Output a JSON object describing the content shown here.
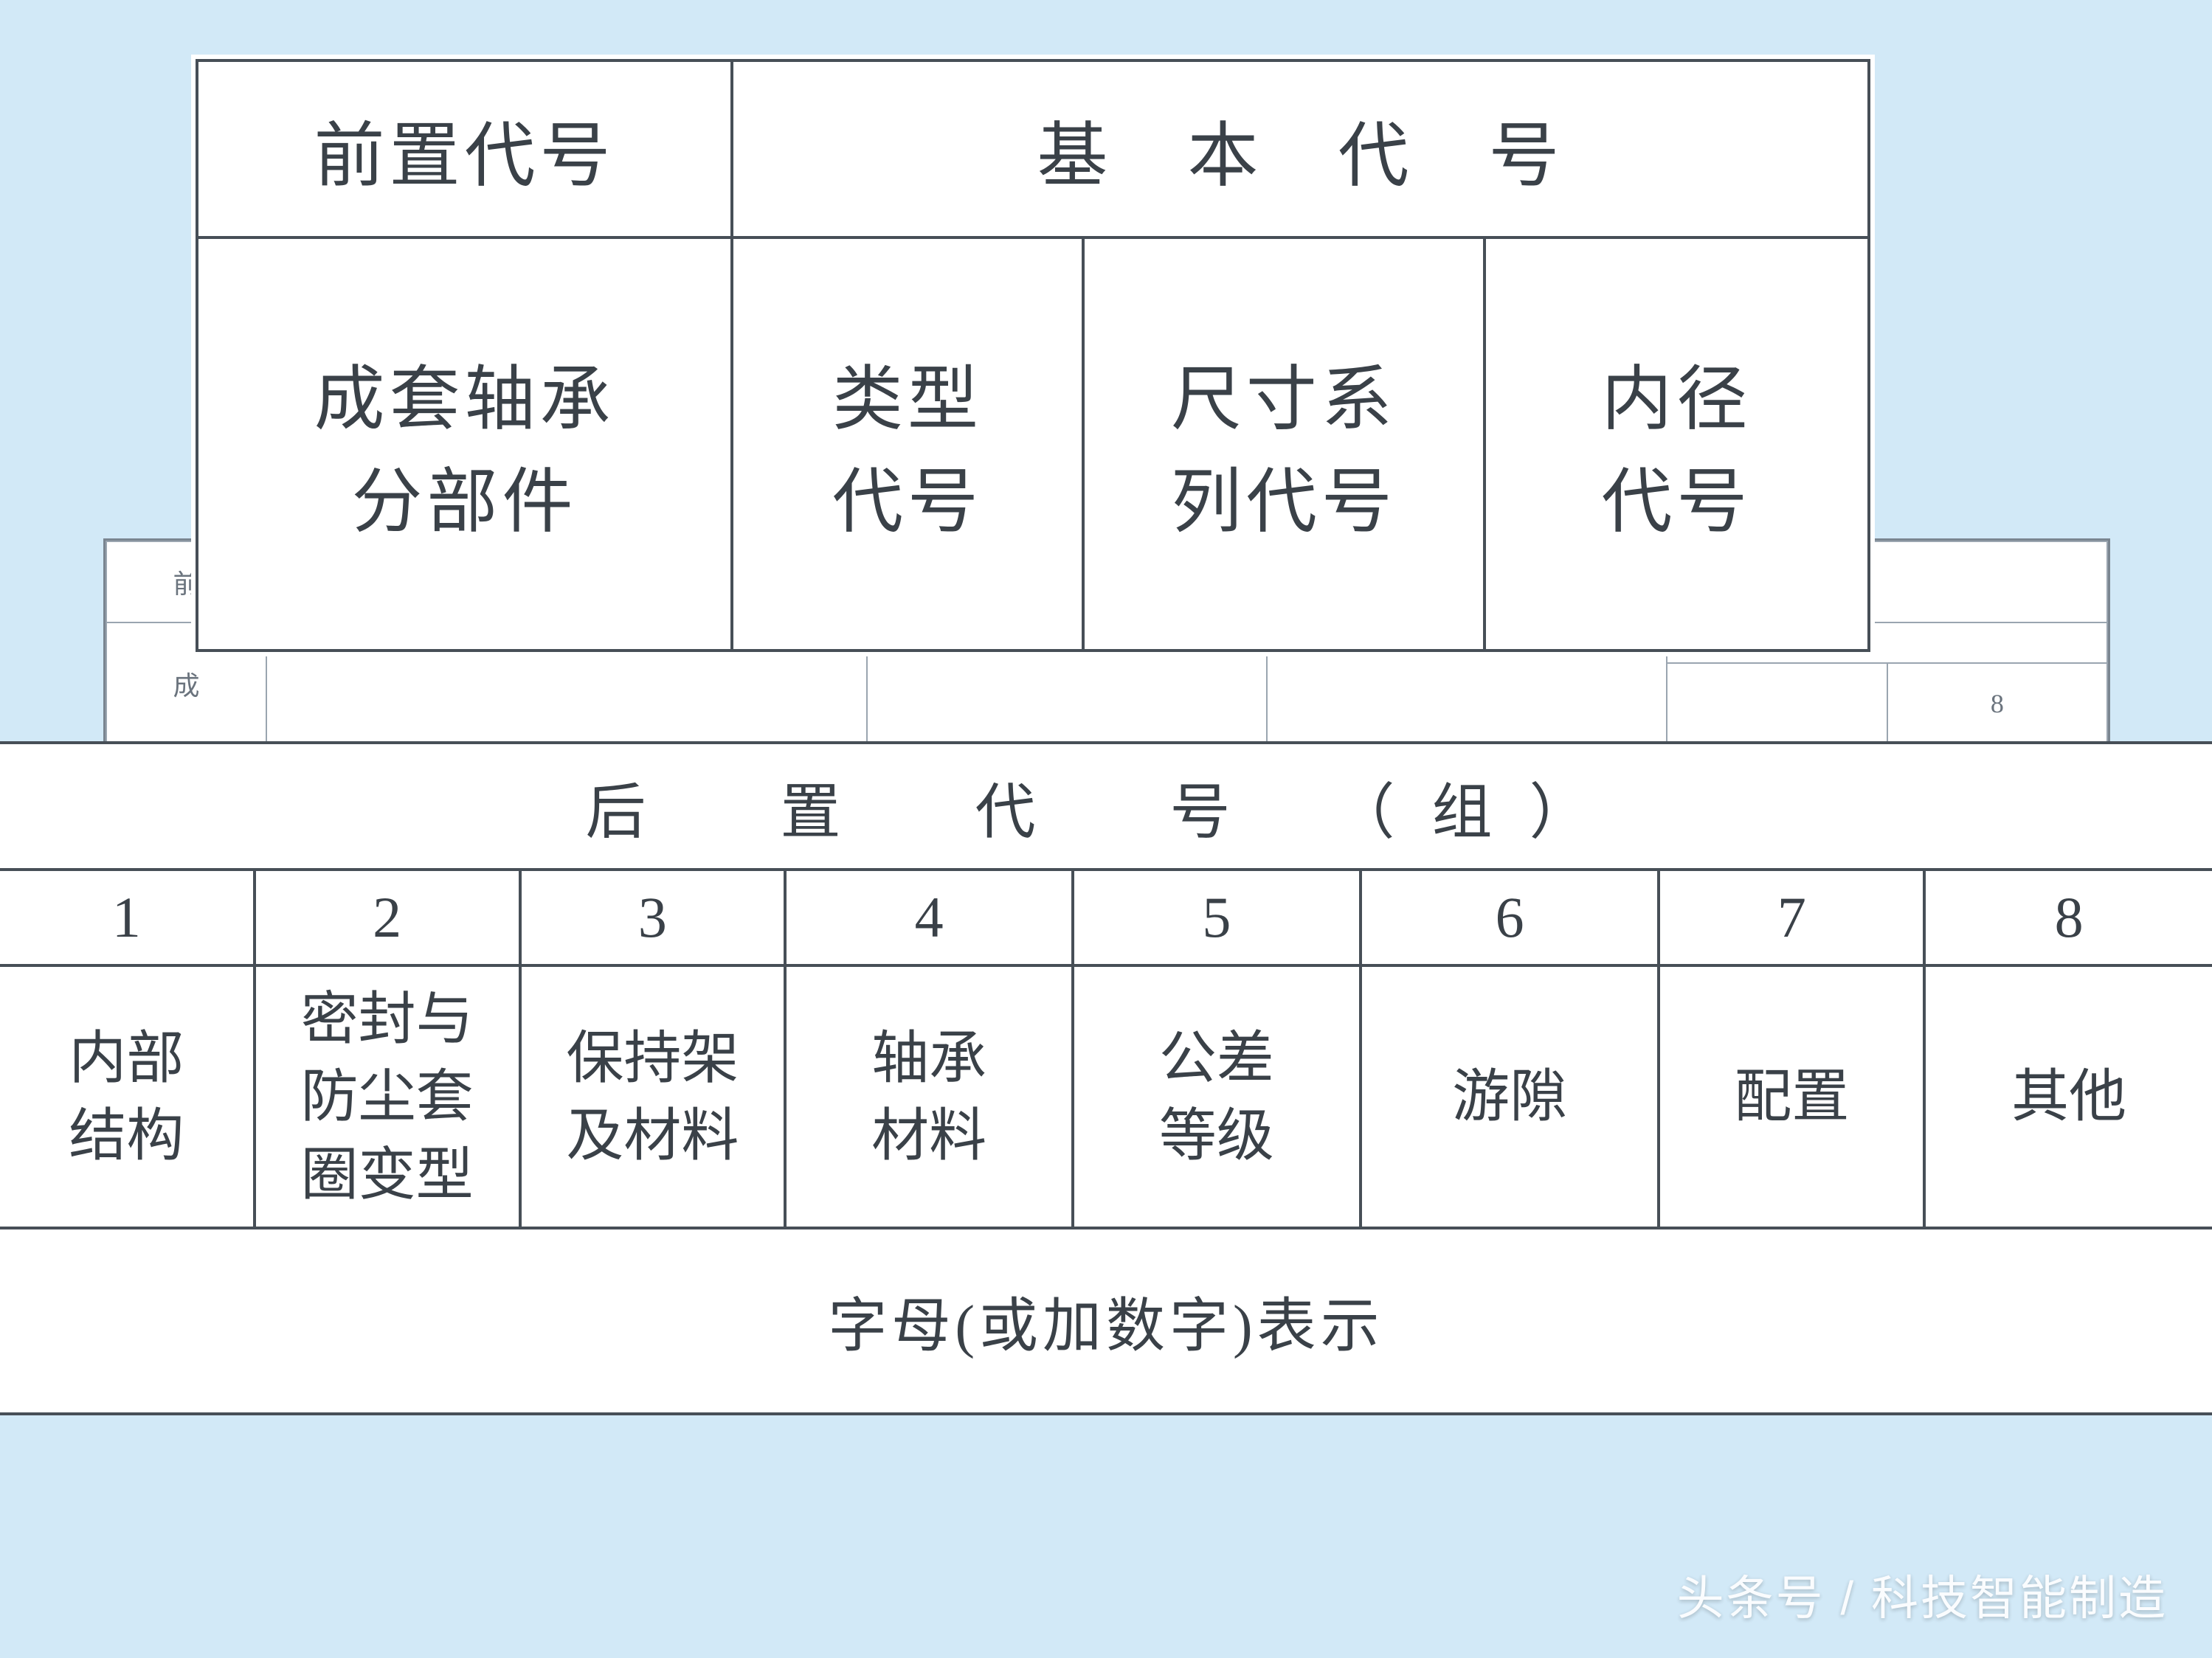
{
  "colors": {
    "page_bg": "#d2e9f7",
    "paper_bg": "#ffffff",
    "border": "#474f57",
    "faint_border": "#9aa5b0",
    "text": "#3a4148",
    "faint_text": "#6a737d",
    "watermark": "#ffffff"
  },
  "bg_table": {
    "row1": {
      "c1": "前",
      "c2": "",
      "c3": "",
      "c4": "",
      "c5": ""
    },
    "row2": {
      "c1": "成",
      "c2": "",
      "c3": "",
      "c4": "",
      "c5_top": "",
      "c5_bot": "8"
    }
  },
  "top": {
    "header": {
      "prefix": "前置代号",
      "basic": "基　本　代　号"
    },
    "row": {
      "prefix_l1": "成套轴承",
      "prefix_l2": "分部件",
      "type_l1": "类型",
      "type_l2": "代号",
      "size_l1": "尺寸系",
      "size_l2": "列代号",
      "bore_l1": "内径",
      "bore_l2": "代号"
    },
    "col_widths_pct": [
      32,
      21,
      24,
      23
    ]
  },
  "bottom": {
    "title": "后　置　代　号　（组）",
    "columns": [
      "1",
      "2",
      "3",
      "4",
      "5",
      "6",
      "7",
      "8"
    ],
    "labels": [
      "内部\n结构",
      "密封与\n防尘套\n圈变型",
      "保持架\n及材料",
      "轴承\n材料",
      "公差\n等级",
      "游隙",
      "配置",
      "其他"
    ],
    "footer": "字母(或加数字)表示",
    "col_widths_pct": [
      11.5,
      12,
      12,
      13,
      13,
      13.5,
      12,
      13
    ]
  },
  "watermark": "头条号 / 科技智能制造"
}
